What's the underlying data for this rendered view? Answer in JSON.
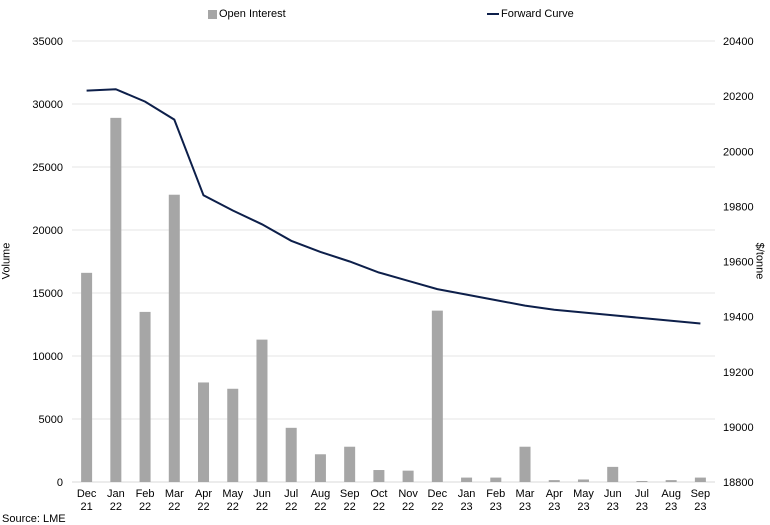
{
  "chart_data": {
    "type": "bar+line",
    "legend": {
      "bar_label": "Open Interest",
      "line_label": "Forward Curve",
      "placement": "top"
    },
    "y_left": {
      "label": "Volume",
      "min": 0,
      "max": 35000,
      "step": 5000,
      "ticks": [
        "0",
        "5000",
        "10000",
        "15000",
        "20000",
        "25000",
        "30000",
        "35000"
      ]
    },
    "y_right": {
      "label": "$/tonne",
      "min": 18800,
      "max": 20400,
      "step": 200,
      "ticks": [
        "18800",
        "19000",
        "19200",
        "19400",
        "19600",
        "19800",
        "20000",
        "20200",
        "20400"
      ]
    },
    "categories": [
      [
        "Dec",
        "21"
      ],
      [
        "Jan",
        "22"
      ],
      [
        "Feb",
        "22"
      ],
      [
        "Mar",
        "22"
      ],
      [
        "Apr",
        "22"
      ],
      [
        "May",
        "22"
      ],
      [
        "Jun",
        "22"
      ],
      [
        "Jul",
        "22"
      ],
      [
        "Aug",
        "22"
      ],
      [
        "Sep",
        "22"
      ],
      [
        "Oct",
        "22"
      ],
      [
        "Nov",
        "22"
      ],
      [
        "Dec",
        "22"
      ],
      [
        "Jan",
        "23"
      ],
      [
        "Feb",
        "23"
      ],
      [
        "Mar",
        "23"
      ],
      [
        "Apr",
        "23"
      ],
      [
        "May",
        "23"
      ],
      [
        "Jun",
        "23"
      ],
      [
        "Jul",
        "23"
      ],
      [
        "Aug",
        "23"
      ],
      [
        "Sep",
        "23"
      ]
    ],
    "series": [
      {
        "name": "Open Interest",
        "axis": "left",
        "type": "bar",
        "color": "#a6a6a6",
        "values": [
          16600,
          28900,
          13500,
          22800,
          7900,
          7400,
          11300,
          4300,
          2200,
          2800,
          950,
          900,
          13600,
          350,
          350,
          2800,
          150,
          200,
          1200,
          80,
          150,
          350
        ]
      },
      {
        "name": "Forward Curve",
        "axis": "right",
        "type": "line",
        "color": "#0d1f4a",
        "values": [
          20220,
          20225,
          20180,
          20115,
          19840,
          19785,
          19735,
          19675,
          19635,
          19600,
          19560,
          19530,
          19500,
          19480,
          19460,
          19440,
          19425,
          19415,
          19405,
          19395,
          19385,
          19375
        ]
      }
    ],
    "grid": true
  },
  "footer": {
    "source": "Source: LME"
  }
}
